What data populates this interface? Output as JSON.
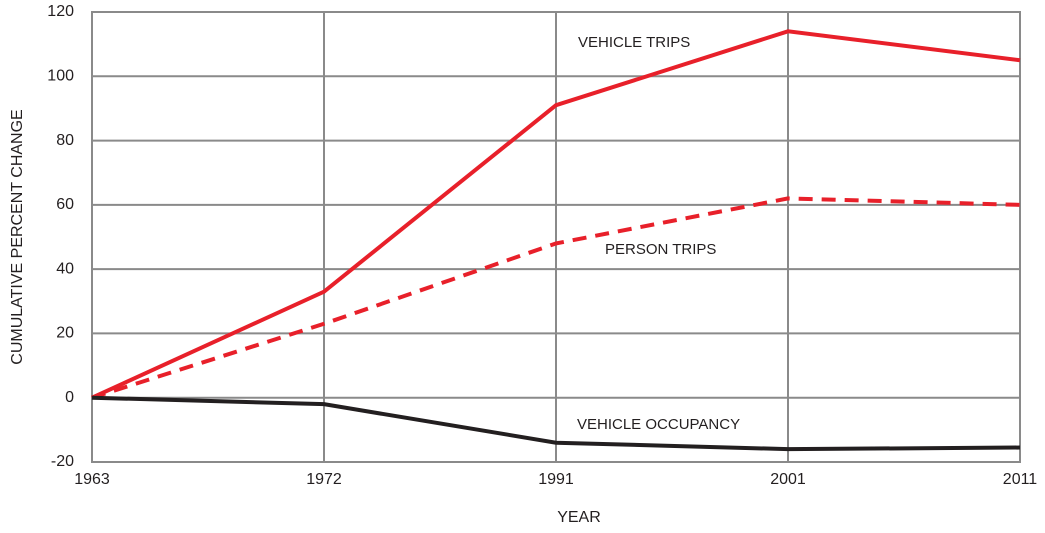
{
  "chart_data": {
    "type": "line",
    "xlabel": "YEAR",
    "ylabel": "CUMULATIVE PERCENT CHANGE",
    "categories": [
      "1963",
      "1972",
      "1991",
      "2001",
      "2011"
    ],
    "series": [
      {
        "name": "VEHICLE TRIPS",
        "color": "#e8202a",
        "style": "solid",
        "values": [
          0,
          33,
          91,
          114,
          105
        ]
      },
      {
        "name": "PERSON TRIPS",
        "color": "#e8202a",
        "style": "dashed",
        "values": [
          0,
          23,
          48,
          62,
          60
        ]
      },
      {
        "name": "VEHICLE OCCUPANCY",
        "color": "#231f20",
        "style": "solid",
        "values": [
          0,
          -2,
          -14,
          -16,
          -15.5
        ]
      }
    ],
    "ylim": [
      -20,
      120
    ],
    "yticks": [
      -20,
      0,
      20,
      40,
      60,
      80,
      100,
      120
    ],
    "grid": true
  }
}
